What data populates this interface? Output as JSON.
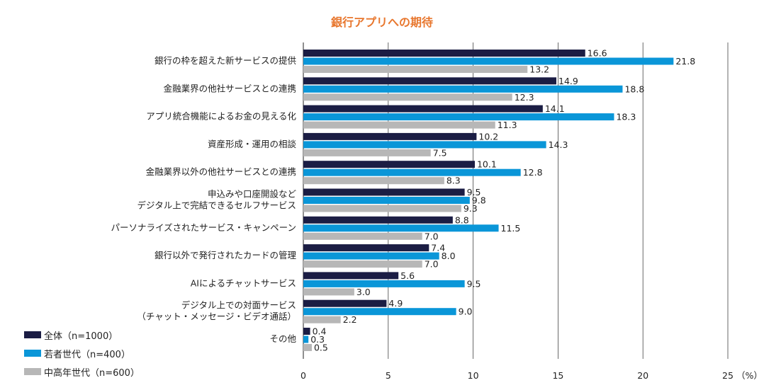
{
  "chart_data": {
    "type": "bar",
    "orientation": "horizontal",
    "title": "銀行アプリへの期待",
    "categories": [
      [
        "銀行の枠を超えた新サービスの提供"
      ],
      [
        "金融業界の他社サービスとの連携"
      ],
      [
        "アプリ統合機能によるお金の見える化"
      ],
      [
        "資産形成・運用の相談"
      ],
      [
        "金融業界以外の他社サービスとの連携"
      ],
      [
        "申込みや口座開設など",
        "デジタル上で完結できるセルフサービス"
      ],
      [
        "パーソナライズされたサービス・キャンペーン"
      ],
      [
        "銀行以外で発行されたカードの管理"
      ],
      [
        "AIによるチャットサービス"
      ],
      [
        "デジタル上での対面サービス",
        "（チャット・メッセージ・ビデオ通話）"
      ],
      [
        "その他"
      ]
    ],
    "series": [
      {
        "name": "全体（n=1000）",
        "color": "#1b1d44",
        "values": [
          16.6,
          14.9,
          14.1,
          10.2,
          10.1,
          9.5,
          8.8,
          7.4,
          5.6,
          4.9,
          0.4
        ]
      },
      {
        "name": "若者世代（n=400）",
        "color": "#0a96d8",
        "values": [
          21.8,
          18.8,
          18.3,
          14.3,
          12.8,
          9.8,
          11.5,
          8.0,
          9.5,
          9.0,
          0.3
        ]
      },
      {
        "name": "中高年世代（n=600）",
        "color": "#b7b7b7",
        "values": [
          13.2,
          12.3,
          11.3,
          7.5,
          8.3,
          9.3,
          7.0,
          7.0,
          3.0,
          2.2,
          0.5
        ]
      }
    ],
    "xlim": [
      0,
      25
    ],
    "xticks": [
      0,
      5,
      10,
      15,
      20,
      25
    ],
    "xunit": "（%）",
    "title_color": "#e8772e",
    "grid": true,
    "legend_position": "bottom-left"
  }
}
